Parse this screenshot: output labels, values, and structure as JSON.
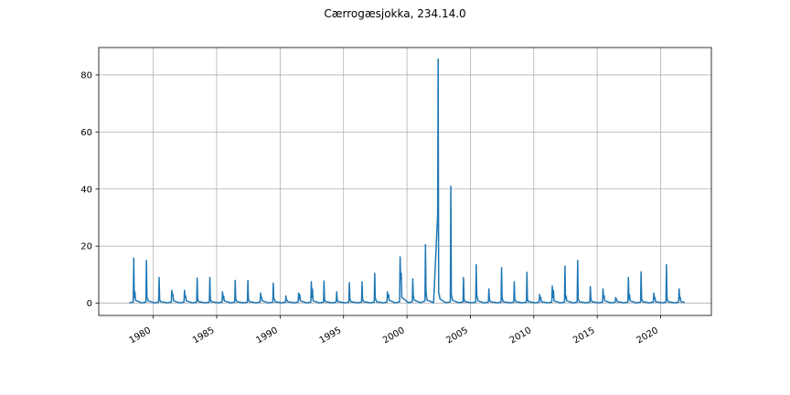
{
  "chart_data": {
    "type": "line",
    "title": "Cærrogæsjokka, 234.14.0",
    "xlabel": "",
    "ylabel": "",
    "x_tick_labels": [
      "1980",
      "1985",
      "1990",
      "1995",
      "2000",
      "2005",
      "2010",
      "2015",
      "2020"
    ],
    "y_tick_labels": [
      "0",
      "20",
      "40",
      "60",
      "80"
    ],
    "x_ticks": [
      1980,
      1985,
      1990,
      1995,
      2000,
      2005,
      2010,
      2015,
      2020
    ],
    "y_ticks": [
      0,
      20,
      40,
      60,
      80
    ],
    "xlim": [
      1975.7,
      2024.0
    ],
    "ylim": [
      -4.3,
      89.6
    ],
    "grid": true,
    "series": [
      {
        "color": "#1f77b4",
        "x": [
          1978.1,
          1978.42,
          1978.46,
          1978.5,
          1978.55,
          1978.6,
          1978.9,
          1979.0,
          1979.1,
          1979.42,
          1979.46,
          1979.5,
          1979.55,
          1979.6,
          1979.9,
          1980.0,
          1980.1,
          1980.42,
          1980.46,
          1980.5,
          1980.55,
          1980.6,
          1980.9,
          1981.0,
          1981.1,
          1981.42,
          1981.46,
          1981.5,
          1981.55,
          1981.6,
          1981.9,
          1982.0,
          1982.1,
          1982.42,
          1982.46,
          1982.5,
          1982.55,
          1982.6,
          1982.9,
          1983.0,
          1983.1,
          1983.42,
          1983.46,
          1983.5,
          1983.55,
          1983.6,
          1983.9,
          1984.0,
          1984.1,
          1984.42,
          1984.46,
          1984.5,
          1984.55,
          1984.6,
          1984.9,
          1985.0,
          1985.1,
          1985.42,
          1985.46,
          1985.5,
          1985.55,
          1985.6,
          1985.9,
          1986.0,
          1986.1,
          1986.42,
          1986.46,
          1986.5,
          1986.55,
          1986.6,
          1986.9,
          1987.0,
          1987.1,
          1987.42,
          1987.46,
          1987.5,
          1987.55,
          1987.6,
          1987.9,
          1988.0,
          1988.1,
          1988.42,
          1988.46,
          1988.5,
          1988.55,
          1988.6,
          1988.9,
          1989.0,
          1989.1,
          1989.42,
          1989.46,
          1989.5,
          1989.55,
          1989.6,
          1989.9,
          1990.0,
          1990.1,
          1990.42,
          1990.46,
          1990.5,
          1990.55,
          1990.6,
          1990.9,
          1991.0,
          1991.1,
          1991.42,
          1991.46,
          1991.5,
          1991.55,
          1991.6,
          1991.9,
          1992.0,
          1992.1,
          1992.42,
          1992.46,
          1992.5,
          1992.55,
          1992.6,
          1992.9,
          1993.0,
          1993.1,
          1993.42,
          1993.46,
          1993.5,
          1993.55,
          1993.6,
          1993.9,
          1994.0,
          1994.1,
          1994.42,
          1994.46,
          1994.5,
          1994.55,
          1994.6,
          1994.9,
          1995.0,
          1995.1,
          1995.42,
          1995.46,
          1995.5,
          1995.55,
          1995.6,
          1995.9,
          1996.0,
          1996.1,
          1996.42,
          1996.46,
          1996.5,
          1996.55,
          1996.6,
          1996.9,
          1997.0,
          1997.1,
          1997.42,
          1997.46,
          1997.5,
          1997.55,
          1997.6,
          1997.9,
          1998.0,
          1998.1,
          1998.42,
          1998.46,
          1998.5,
          1998.55,
          1998.6,
          1998.9,
          1999.0,
          1999.1,
          1999.42,
          1999.46,
          1999.5,
          1999.55,
          1999.6,
          1999.9,
          2000.0,
          2000.1,
          2000.42,
          2000.46,
          2000.5,
          2000.55,
          2000.6,
          2000.9,
          2001.0,
          2001.1,
          2001.42,
          2001.46,
          2001.5,
          2001.55,
          2001.6,
          2001.9,
          2002.0,
          2002.1,
          2002.42,
          2002.46,
          2002.5,
          2002.55,
          2002.6,
          2002.9,
          2003.0,
          2003.1,
          2003.42,
          2003.46,
          2003.5,
          2003.55,
          2003.6,
          2003.9,
          2004.0,
          2004.1,
          2004.42,
          2004.46,
          2004.5,
          2004.55,
          2004.6,
          2004.9,
          2005.0,
          2005.1,
          2005.42,
          2005.46,
          2005.5,
          2005.55,
          2005.6,
          2005.9,
          2006.0,
          2006.1,
          2006.42,
          2006.46,
          2006.5,
          2006.55,
          2006.6,
          2006.9,
          2007.0,
          2007.1,
          2007.42,
          2007.46,
          2007.5,
          2007.55,
          2007.6,
          2007.9,
          2008.0,
          2008.1,
          2008.42,
          2008.46,
          2008.5,
          2008.55,
          2008.6,
          2008.9,
          2009.0,
          2009.1,
          2009.42,
          2009.46,
          2009.5,
          2009.55,
          2009.6,
          2009.9,
          2010.0,
          2010.1,
          2010.42,
          2010.46,
          2010.5,
          2010.55,
          2010.6,
          2010.9,
          2011.0,
          2011.1,
          2011.42,
          2011.46,
          2011.5,
          2011.55,
          2011.6,
          2011.9,
          2012.0,
          2012.1,
          2012.42,
          2012.46,
          2012.5,
          2012.55,
          2012.6,
          2012.9,
          2013.0,
          2013.1,
          2013.42,
          2013.46,
          2013.5,
          2013.55,
          2013.6,
          2013.9,
          2014.0,
          2014.1,
          2014.42,
          2014.46,
          2014.5,
          2014.55,
          2014.6,
          2014.9,
          2015.0,
          2015.1,
          2015.42,
          2015.46,
          2015.5,
          2015.55,
          2015.6,
          2015.9,
          2016.0,
          2016.1,
          2016.42,
          2016.46,
          2016.5,
          2016.55,
          2016.6,
          2016.9,
          2017.0,
          2017.1,
          2017.42,
          2017.46,
          2017.5,
          2017.55,
          2017.6,
          2017.9,
          2018.0,
          2018.1,
          2018.42,
          2018.46,
          2018.5,
          2018.55,
          2018.6,
          2018.9,
          2019.0,
          2019.1,
          2019.42,
          2019.46,
          2019.5,
          2019.55,
          2019.6,
          2019.9,
          2020.0,
          2020.1,
          2020.42,
          2020.46,
          2020.5,
          2020.55,
          2020.6,
          2020.9,
          2021.0,
          2021.1,
          2021.42,
          2021.46,
          2021.5,
          2021.55,
          2021.6,
          2021.9
        ],
        "y": [
          0.1,
          0.4,
          15.8,
          2.0,
          4.0,
          1.0,
          0.5,
          0.2,
          0.1,
          0.4,
          15.0,
          2.0,
          1.5,
          0.8,
          0.4,
          0.2,
          0.1,
          0.4,
          9.0,
          1.5,
          0.8,
          0.5,
          0.3,
          0.2,
          0.1,
          0.4,
          4.5,
          3.0,
          3.0,
          0.8,
          0.4,
          0.2,
          0.1,
          0.4,
          4.5,
          2.0,
          2.5,
          0.8,
          0.4,
          0.2,
          0.1,
          0.4,
          8.8,
          1.5,
          0.8,
          0.5,
          0.3,
          0.2,
          0.1,
          0.4,
          9.0,
          1.5,
          0.8,
          0.5,
          0.3,
          0.2,
          0.1,
          0.4,
          4.0,
          1.5,
          2.5,
          0.8,
          0.4,
          0.2,
          0.1,
          0.4,
          8.0,
          1.5,
          1.0,
          0.5,
          0.3,
          0.2,
          0.1,
          0.4,
          8.0,
          1.5,
          0.8,
          0.5,
          0.3,
          0.2,
          0.1,
          0.4,
          3.5,
          2.0,
          2.0,
          0.8,
          0.4,
          0.2,
          0.1,
          0.4,
          7.0,
          1.5,
          1.5,
          0.5,
          0.3,
          0.2,
          0.1,
          0.4,
          2.5,
          1.0,
          1.0,
          0.5,
          0.3,
          0.2,
          0.1,
          0.4,
          3.5,
          1.5,
          3.0,
          0.8,
          0.4,
          0.2,
          0.1,
          0.4,
          7.5,
          2.0,
          5.0,
          0.8,
          0.4,
          0.2,
          0.1,
          0.4,
          7.8,
          1.5,
          0.8,
          0.5,
          0.3,
          0.2,
          0.1,
          0.4,
          4.0,
          1.0,
          0.8,
          0.5,
          0.3,
          0.2,
          0.1,
          0.4,
          7.2,
          1.5,
          0.8,
          0.5,
          0.3,
          0.2,
          0.1,
          0.4,
          7.5,
          1.5,
          0.8,
          0.5,
          0.3,
          0.2,
          0.1,
          0.4,
          10.5,
          2.0,
          1.2,
          0.5,
          0.3,
          0.2,
          0.1,
          0.4,
          4.0,
          2.0,
          3.0,
          1.0,
          0.5,
          0.2,
          0.1,
          0.5,
          16.2,
          8.5,
          10.5,
          2.0,
          1.0,
          0.5,
          0.2,
          0.5,
          8.5,
          2.5,
          1.5,
          1.0,
          0.5,
          0.3,
          0.2,
          0.8,
          20.5,
          4.5,
          2.0,
          1.0,
          0.6,
          0.3,
          0.2,
          31.0,
          85.5,
          3.5,
          3.0,
          1.5,
          0.6,
          0.3,
          0.2,
          0.5,
          41.0,
          3.0,
          2.0,
          1.0,
          0.5,
          0.3,
          0.2,
          0.4,
          9.0,
          1.5,
          0.8,
          0.5,
          0.3,
          0.2,
          0.1,
          0.4,
          13.5,
          3.0,
          2.0,
          0.8,
          0.4,
          0.2,
          0.1,
          0.4,
          5.0,
          1.5,
          0.8,
          0.5,
          0.3,
          0.2,
          0.1,
          0.4,
          12.5,
          2.0,
          1.0,
          0.5,
          0.3,
          0.2,
          0.1,
          0.4,
          7.5,
          1.5,
          1.0,
          0.5,
          0.3,
          0.2,
          0.1,
          0.4,
          10.8,
          1.5,
          0.8,
          0.5,
          0.3,
          0.2,
          0.1,
          0.4,
          3.0,
          1.5,
          2.0,
          0.5,
          0.3,
          0.2,
          0.1,
          0.4,
          6.0,
          2.0,
          4.5,
          0.8,
          0.4,
          0.2,
          0.1,
          0.4,
          13.0,
          1.5,
          2.5,
          0.8,
          0.4,
          0.2,
          0.1,
          0.4,
          15.0,
          1.5,
          1.0,
          0.5,
          0.3,
          0.2,
          0.1,
          0.4,
          5.8,
          1.5,
          0.8,
          0.5,
          0.3,
          0.2,
          0.1,
          0.4,
          5.0,
          2.0,
          2.5,
          0.8,
          0.4,
          0.2,
          0.1,
          0.4,
          2.0,
          1.5,
          1.0,
          0.5,
          0.3,
          0.2,
          0.1,
          0.4,
          9.0,
          1.5,
          3.0,
          0.8,
          0.4,
          0.2,
          0.1,
          0.4,
          11.0,
          1.5,
          1.0,
          0.5,
          0.3,
          0.2,
          0.1,
          0.4,
          3.5,
          1.5,
          2.0,
          0.5,
          0.3,
          0.2,
          0.1,
          0.4,
          13.5,
          2.0,
          1.0,
          0.5,
          0.3,
          0.2,
          0.1,
          0.4,
          5.0,
          1.5,
          2.0,
          0.5,
          0.3
        ]
      }
    ]
  }
}
